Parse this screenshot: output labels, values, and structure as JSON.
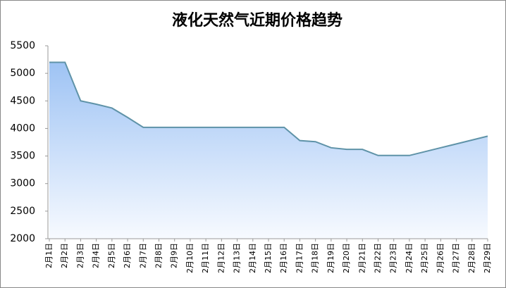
{
  "chart_data": {
    "type": "area",
    "title": "液化天然气近期价格趋势",
    "categories": [
      "2月1日",
      "2月2日",
      "2月3日",
      "2月4日",
      "2月5日",
      "2月6日",
      "2月7日",
      "2月8日",
      "2月9日",
      "2月10日",
      "2月11日",
      "2月12日",
      "2月13日",
      "2月14日",
      "2月15日",
      "2月16日",
      "2月17日",
      "2月18日",
      "2月19日",
      "2月20日",
      "2月21日",
      "2月22日",
      "2月23日",
      "2月24日",
      "2月25日",
      "2月26日",
      "2月27日",
      "2月28日",
      "2月29日"
    ],
    "values": [
      5200,
      5200,
      4500,
      4440,
      4370,
      4200,
      4020,
      4020,
      4020,
      4020,
      4020,
      4020,
      4020,
      4020,
      4020,
      4020,
      3780,
      3760,
      3650,
      3620,
      3620,
      3510,
      3510,
      3510,
      3580,
      3650,
      3720,
      3790,
      3860
    ],
    "color": "#5f93a8",
    "fill_color": "#9ec3f4",
    "ylim": [
      2000,
      5500
    ],
    "yticks": [
      2000,
      2500,
      3000,
      3500,
      4000,
      4500,
      5000,
      5500
    ],
    "grid": false
  }
}
